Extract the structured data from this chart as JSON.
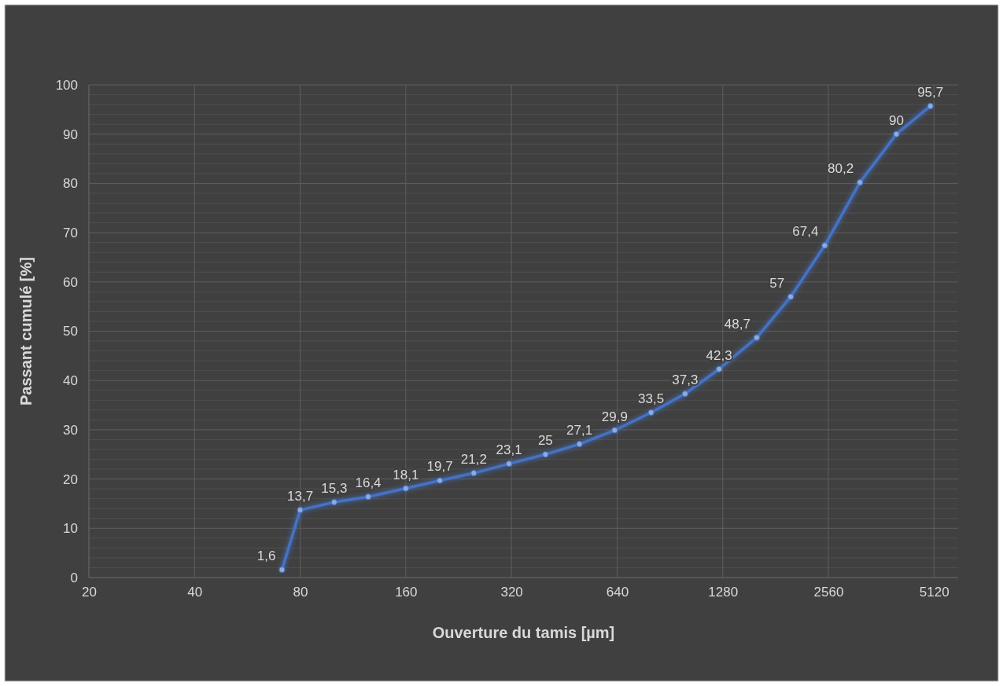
{
  "chart_data": {
    "type": "line",
    "xlabel": "Ouverture du tamis [µm]",
    "ylabel": "Passant cumulé [%]",
    "log": "x",
    "xlim": [
      20,
      6000
    ],
    "xticks": [
      20,
      40,
      80,
      160,
      320,
      640,
      1280,
      2560,
      5120
    ],
    "ylim": [
      0,
      100
    ],
    "yticks": [
      0,
      10,
      20,
      30,
      40,
      50,
      60,
      70,
      80,
      90,
      100
    ],
    "grid": true,
    "marker": "circle",
    "line_style": "solid",
    "x": [
      71,
      80,
      100,
      125,
      160,
      200,
      250,
      315,
      400,
      500,
      630,
      800,
      1000,
      1250,
      1600,
      2000,
      2500,
      3150,
      4000,
      5000
    ],
    "series": [
      {
        "color": "#4472c4",
        "values": [
          1.6,
          13.7,
          15.3,
          16.4,
          18.1,
          19.7,
          21.2,
          23.1,
          25,
          27.1,
          29.9,
          33.5,
          37.3,
          42.3,
          48.7,
          57,
          67.4,
          80.2,
          90,
          95.7
        ],
        "value_labels": [
          "1,6",
          "13,7",
          "15,3",
          "16,4",
          "18,1",
          "19,7",
          "21,2",
          "23,1",
          "25",
          "27,1",
          "29,9",
          "33,5",
          "37,3",
          "42,3",
          "48,7",
          "57",
          "67,4",
          "80,2",
          "90",
          "95,7"
        ]
      }
    ]
  }
}
